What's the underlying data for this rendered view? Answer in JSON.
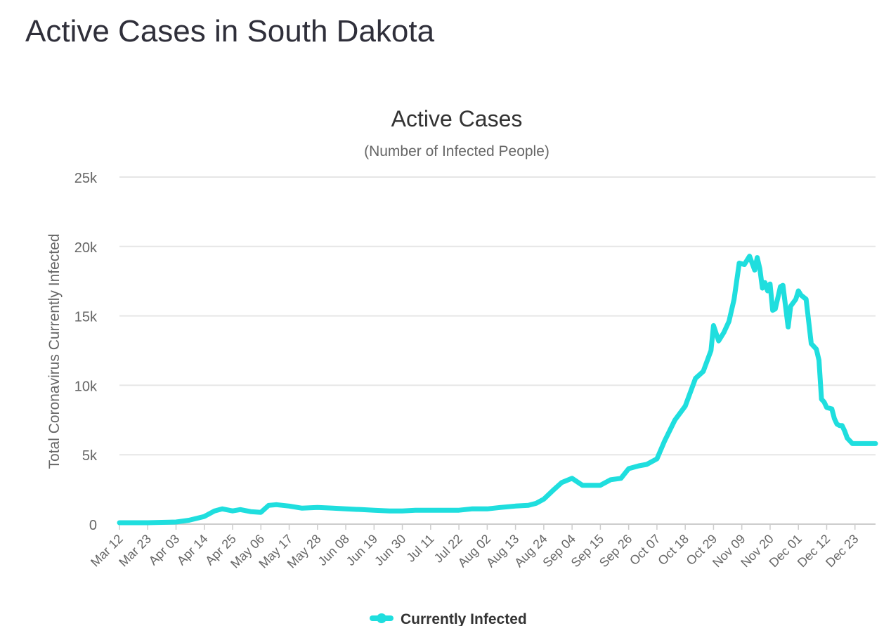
{
  "page": {
    "title": "Active Cases in South Dakota"
  },
  "colors": {
    "series": "#1fdede",
    "grid": "#e6e6e6",
    "axis": "#cccccc",
    "text": "#666666"
  },
  "chart_data": {
    "type": "line",
    "title": "Active Cases",
    "subtitle": "(Number of Infected People)",
    "xlabel": "",
    "ylabel": "Total Coronavirus Currently Infected",
    "ylim": [
      0,
      25000
    ],
    "yticks": [
      0,
      5000,
      10000,
      15000,
      20000,
      25000
    ],
    "ytick_labels": [
      "0",
      "5k",
      "10k",
      "15k",
      "20k",
      "25k"
    ],
    "x_start": "2020-03-12",
    "x_end": "2020-12-31",
    "xtick_labels": [
      "Mar 12",
      "Mar 23",
      "Apr 03",
      "Apr 14",
      "Apr 25",
      "May 06",
      "May 17",
      "May 28",
      "Jun 08",
      "Jun 19",
      "Jun 30",
      "Jul 11",
      "Jul 22",
      "Aug 02",
      "Aug 13",
      "Aug 24",
      "Sep 04",
      "Sep 15",
      "Sep 26",
      "Oct 07",
      "Oct 18",
      "Oct 29",
      "Nov 09",
      "Nov 20",
      "Dec 01",
      "Dec 12",
      "Dec 23"
    ],
    "grid": true,
    "legend_position": "bottom-center",
    "series": [
      {
        "name": "Currently Infected",
        "x": [
          "2020-03-12",
          "2020-03-23",
          "2020-04-03",
          "2020-04-08",
          "2020-04-14",
          "2020-04-18",
          "2020-04-21",
          "2020-04-25",
          "2020-04-28",
          "2020-05-02",
          "2020-05-06",
          "2020-05-09",
          "2020-05-12",
          "2020-05-17",
          "2020-05-22",
          "2020-05-28",
          "2020-06-03",
          "2020-06-08",
          "2020-06-14",
          "2020-06-19",
          "2020-06-25",
          "2020-06-30",
          "2020-07-05",
          "2020-07-11",
          "2020-07-16",
          "2020-07-22",
          "2020-07-27",
          "2020-08-02",
          "2020-08-07",
          "2020-08-13",
          "2020-08-18",
          "2020-08-21",
          "2020-08-24",
          "2020-08-28",
          "2020-08-31",
          "2020-09-04",
          "2020-09-08",
          "2020-09-11",
          "2020-09-15",
          "2020-09-19",
          "2020-09-23",
          "2020-09-26",
          "2020-09-30",
          "2020-10-03",
          "2020-10-07",
          "2020-10-10",
          "2020-10-14",
          "2020-10-18",
          "2020-10-22",
          "2020-10-25",
          "2020-10-28",
          "2020-10-29",
          "2020-10-31",
          "2020-11-02",
          "2020-11-04",
          "2020-11-06",
          "2020-11-08",
          "2020-11-10",
          "2020-11-12",
          "2020-11-14",
          "2020-11-15",
          "2020-11-16",
          "2020-11-17",
          "2020-11-18",
          "2020-11-19",
          "2020-11-20",
          "2020-11-21",
          "2020-11-22",
          "2020-11-24",
          "2020-11-25",
          "2020-11-27",
          "2020-11-28",
          "2020-11-30",
          "2020-12-01",
          "2020-12-02",
          "2020-12-04",
          "2020-12-06",
          "2020-12-08",
          "2020-12-09",
          "2020-12-10",
          "2020-12-11",
          "2020-12-12",
          "2020-12-14",
          "2020-12-15",
          "2020-12-16",
          "2020-12-17",
          "2020-12-18",
          "2020-12-19",
          "2020-12-20",
          "2020-12-22",
          "2020-12-23",
          "2020-12-25",
          "2020-12-26",
          "2020-12-27",
          "2020-12-29",
          "2020-12-31"
        ],
        "y": [
          100,
          100,
          150,
          280,
          550,
          950,
          1100,
          950,
          1050,
          900,
          850,
          1350,
          1400,
          1300,
          1150,
          1200,
          1150,
          1100,
          1050,
          1000,
          950,
          950,
          1000,
          1000,
          1000,
          1000,
          1100,
          1100,
          1200,
          1300,
          1350,
          1500,
          1800,
          2500,
          3000,
          3300,
          2800,
          2800,
          2800,
          3200,
          3300,
          4000,
          4200,
          4300,
          4700,
          6000,
          7500,
          8500,
          10500,
          11000,
          12500,
          14300,
          13200,
          13800,
          14600,
          16200,
          18800,
          18700,
          19300,
          18300,
          19200,
          18400,
          17000,
          17400,
          16800,
          17300,
          15400,
          15500,
          17100,
          17200,
          14200,
          15700,
          16200,
          16800,
          16500,
          16200,
          13000,
          12600,
          11800,
          9000,
          8800,
          8400,
          8300,
          7600,
          7200,
          7100,
          7100,
          6700,
          6200,
          5800,
          5800,
          5800,
          5800,
          5800,
          5800,
          5800
        ]
      }
    ]
  }
}
